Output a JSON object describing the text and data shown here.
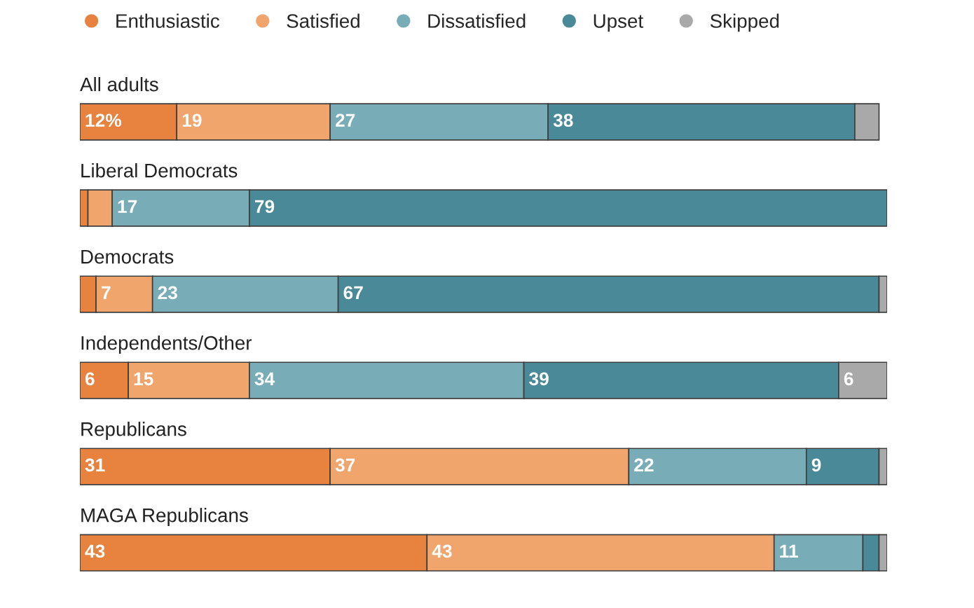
{
  "chart_data": {
    "type": "bar",
    "orientation": "horizontal",
    "stacked": true,
    "legend": "top left",
    "tick_labels": "y",
    "xlim": [
      0,
      100
    ],
    "categories": [
      "All adults",
      "Liberal Democrats",
      "Democrats",
      "Independents/Other",
      "Republicans",
      "MAGA Republicans"
    ],
    "series": [
      {
        "name": "Enthusiastic",
        "color": "#e8823f",
        "values": [
          12,
          1,
          2,
          6,
          31,
          43
        ],
        "value_labels": [
          "12%",
          null,
          null,
          "6",
          "31",
          "43"
        ]
      },
      {
        "name": "Satisfied",
        "color": "#f0a56d",
        "values": [
          19,
          3,
          7,
          15,
          37,
          43
        ],
        "value_labels": [
          "19",
          null,
          "7",
          "15",
          "37",
          "43"
        ]
      },
      {
        "name": "Dissatisfied",
        "color": "#78adb8",
        "values": [
          27,
          17,
          23,
          34,
          22,
          11
        ],
        "value_labels": [
          "27",
          "17",
          "23",
          "34",
          "22",
          "11"
        ]
      },
      {
        "name": "Upset",
        "color": "#4a8a98",
        "values": [
          38,
          79,
          67,
          39,
          9,
          2
        ],
        "value_labels": [
          "38",
          "79",
          "67",
          "39",
          "9",
          null
        ]
      },
      {
        "name": "Skipped",
        "color": "#a9a9a9",
        "values": [
          3,
          null,
          1,
          6,
          1,
          1
        ],
        "value_labels": [
          null,
          null,
          null,
          "6",
          null,
          null
        ]
      }
    ]
  }
}
